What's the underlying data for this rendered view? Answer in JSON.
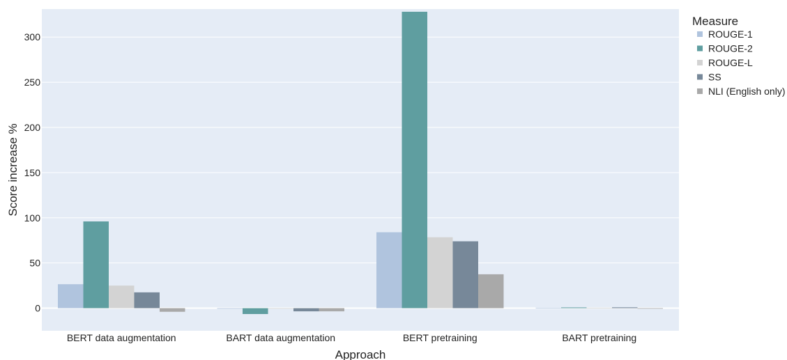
{
  "chart_data": {
    "type": "bar",
    "title": "",
    "xlabel": "Approach",
    "ylabel": "Score increase %",
    "ylim": [
      -25,
      331
    ],
    "yticks": [
      0,
      50,
      100,
      150,
      200,
      250,
      300
    ],
    "grid": true,
    "legend_title": "Measure",
    "legend_position": "right",
    "categories": [
      "BERT data augmentation",
      "BART data augmentation",
      "BERT pretraining",
      "BART pretraining"
    ],
    "series": [
      {
        "name": "ROUGE-1",
        "color": "#B0C4DE",
        "values": [
          26.5,
          0,
          84,
          0.5
        ]
      },
      {
        "name": "ROUGE-2",
        "color": "#5F9EA0",
        "values": [
          96,
          -6.5,
          328,
          0.8
        ]
      },
      {
        "name": "ROUGE-L",
        "color": "#D3D3D3",
        "values": [
          25,
          0,
          78.5,
          0.4
        ]
      },
      {
        "name": "SS",
        "color": "#778899",
        "values": [
          17.5,
          -3.5,
          74,
          0.9
        ]
      },
      {
        "name": "NLI (English only)",
        "color": "#A9A9A9",
        "values": [
          -4,
          -3.5,
          37.5,
          0
        ]
      }
    ]
  },
  "colors": {
    "plot_background": "#E5ECF6",
    "grid": "#ffffff"
  }
}
